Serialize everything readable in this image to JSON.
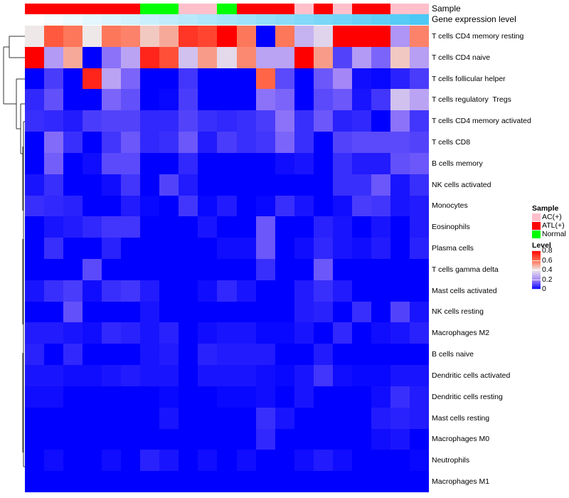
{
  "annotation_labels": {
    "sample": "Sample",
    "gene": "Gene expression level"
  },
  "legend": {
    "sample_title": "Sample",
    "sample_items": [
      {
        "label": "AC(+)",
        "color": "#ffc0cb"
      },
      {
        "label": "ATL(+)",
        "color": "#ff0000"
      },
      {
        "label": "Normal",
        "color": "#00ff00"
      }
    ],
    "level_title": "Level",
    "level_ticks": [
      "0.8",
      "0.6",
      "0.4",
      "0.2",
      "0"
    ]
  },
  "chart_data": {
    "type": "heatmap",
    "title": "",
    "value_range": [
      0,
      0.8
    ],
    "colorscale": [
      [
        0,
        "#0000ff"
      ],
      [
        0.2,
        "#a486f7"
      ],
      [
        0.4,
        "#eee8e8"
      ],
      [
        0.6,
        "#ff6a4a"
      ],
      [
        0.8,
        "#ff0000"
      ]
    ],
    "column_sample": [
      "ATL(+)",
      "ATL(+)",
      "ATL(+)",
      "ATL(+)",
      "ATL(+)",
      "ATL(+)",
      "Normal",
      "Normal",
      "AC(+)",
      "AC(+)",
      "Normal",
      "ATL(+)",
      "ATL(+)",
      "ATL(+)",
      "AC(+)",
      "ATL(+)",
      "AC(+)",
      "ATL(+)",
      "ATL(+)",
      "AC(+)",
      "AC(+)"
    ],
    "column_gene_expression_level": [
      0,
      0.05,
      0.1,
      0.15,
      0.2,
      0.25,
      0.3,
      0.35,
      0.4,
      0.45,
      0.5,
      0.55,
      0.6,
      0.65,
      0.7,
      0.75,
      0.8,
      0.85,
      0.9,
      0.95,
      1
    ],
    "rows": [
      "T cells CD4 memory resting",
      "T cells CD4 naive",
      "T cells follicular helper",
      "T cells regulatory  Tregs",
      "T cells CD4 memory activated",
      "T cells CD8",
      "B cells memory",
      "NK cells activated",
      "Monocytes",
      "Eosinophils",
      "Plasma cells",
      "T cells gamma delta",
      "Mast cells activated",
      "NK cells resting",
      "Macrophages M2",
      "B cells naive",
      "Dendritic cells activated",
      "Dendritic cells resting",
      "Mast cells resting",
      "Macrophages M0",
      "Neutrophils",
      "Macrophages M1"
    ],
    "values": [
      [
        0.4,
        0.63,
        0.58,
        0.4,
        0.58,
        0.56,
        0.45,
        0.5,
        0.7,
        0.67,
        0.8,
        0.58,
        0,
        0.58,
        0.29,
        0.36,
        0.8,
        0.8,
        0.8,
        0.23,
        0.56
      ],
      [
        0.8,
        0.24,
        0.5,
        0,
        0.17,
        0.26,
        0.73,
        0.65,
        0.32,
        0.52,
        0.37,
        0.55,
        0.26,
        0.26,
        0.8,
        0.52,
        0.1,
        0.24,
        0.15,
        0.45,
        0.25
      ],
      [
        0,
        0.09,
        0,
        0.73,
        0.26,
        0.15,
        0,
        0,
        0.08,
        0,
        0,
        0,
        0.61,
        0.11,
        0,
        0.13,
        0.2,
        0.02,
        0.01,
        0.05,
        0.09
      ],
      [
        0.06,
        0.12,
        0,
        0,
        0.15,
        0.12,
        0,
        0.01,
        0.09,
        0,
        0,
        0,
        0.17,
        0.15,
        0,
        0.11,
        0.13,
        0.03,
        0.08,
        0.32,
        0.26
      ],
      [
        0.07,
        0.06,
        0.04,
        0.09,
        0.1,
        0.1,
        0.06,
        0.06,
        0.1,
        0.07,
        0.06,
        0.07,
        0.09,
        0.17,
        0.07,
        0.13,
        0.05,
        0.06,
        0,
        0.17,
        0.08
      ],
      [
        0,
        0.16,
        0.07,
        0,
        0.08,
        0.13,
        0.06,
        0.07,
        0.13,
        0.04,
        0.09,
        0.07,
        0.08,
        0.15,
        0.07,
        0,
        0.1,
        0.11,
        0.11,
        0.11,
        0.1
      ],
      [
        0,
        0.14,
        0,
        0.02,
        0.11,
        0.11,
        0,
        0,
        0.06,
        0,
        0,
        0,
        0,
        0.02,
        0.03,
        0,
        0.07,
        0.04,
        0.04,
        0.12,
        0.13
      ],
      [
        0.03,
        0.07,
        0,
        0,
        0.02,
        0.08,
        0,
        0.1,
        0.04,
        0,
        0,
        0,
        0,
        0,
        0,
        0,
        0.07,
        0.07,
        0.13,
        0.03,
        0.07
      ],
      [
        0.07,
        0.06,
        0.05,
        0,
        0,
        0.04,
        0.01,
        0,
        0.08,
        0.01,
        0.04,
        0,
        0.01,
        0.07,
        0.03,
        0,
        0.02,
        0.09,
        0.08,
        0.03,
        0.04
      ],
      [
        0,
        0.03,
        0.04,
        0.06,
        0.08,
        0.08,
        0,
        0,
        0,
        0.03,
        0,
        0,
        0.13,
        0,
        0,
        0.05,
        0.03,
        0,
        0.03,
        0,
        0.04
      ],
      [
        0,
        0.07,
        0,
        0,
        0.05,
        0,
        0,
        0,
        0,
        0,
        0.02,
        0.02,
        0.13,
        0,
        0.02,
        0.06,
        0.03,
        0.02,
        0.04,
        0,
        0.05
      ],
      [
        0,
        0,
        0,
        0.11,
        0,
        0,
        0,
        0,
        0,
        0,
        0,
        0,
        0.07,
        0,
        0,
        0.13,
        0,
        0,
        0,
        0,
        0
      ],
      [
        0.03,
        0.07,
        0.09,
        0.02,
        0.07,
        0.08,
        0.04,
        0,
        0,
        0.02,
        0.06,
        0.03,
        0,
        0,
        0.04,
        0.07,
        0.04,
        0,
        0,
        0,
        0
      ],
      [
        0,
        0,
        0.12,
        0,
        0,
        0,
        0.03,
        0,
        0,
        0,
        0,
        0,
        0,
        0,
        0.04,
        0.05,
        0,
        0.07,
        0,
        0.1,
        0.03
      ],
      [
        0.04,
        0.04,
        0.03,
        0.02,
        0.06,
        0.05,
        0.03,
        0.05,
        0,
        0.02,
        0.03,
        0.03,
        0.01,
        0.01,
        0.03,
        0,
        0.06,
        0,
        0.02,
        0.03,
        0.05
      ],
      [
        0.05,
        0,
        0.06,
        0,
        0,
        0,
        0.03,
        0.04,
        0,
        0.05,
        0.04,
        0.04,
        0.04,
        0,
        0,
        0.04,
        0,
        0,
        0,
        0,
        0
      ],
      [
        0.03,
        0.03,
        0.02,
        0.02,
        0.03,
        0.04,
        0.03,
        0.03,
        0,
        0.03,
        0.03,
        0.03,
        0.02,
        0.01,
        0.03,
        0.08,
        0.02,
        0.01,
        0.01,
        0.03,
        0.03
      ],
      [
        0.02,
        0.02,
        0,
        0,
        0,
        0,
        0,
        0.01,
        0,
        0,
        0.01,
        0.01,
        0.02,
        0,
        0.03,
        0,
        0,
        0,
        0.02,
        0.07,
        0.04
      ],
      [
        0,
        0,
        0,
        0,
        0,
        0,
        0,
        0.03,
        0,
        0,
        0,
        0,
        0.07,
        0.03,
        0,
        0,
        0,
        0,
        0.04,
        0.05,
        0.04
      ],
      [
        0,
        0,
        0,
        0,
        0,
        0,
        0,
        0,
        0,
        0,
        0,
        0,
        0.06,
        0,
        0,
        0,
        0,
        0,
        0.02,
        0.03,
        0
      ],
      [
        0,
        0.02,
        0,
        0,
        0.02,
        0,
        0.05,
        0.03,
        0,
        0.02,
        0,
        0.02,
        0,
        0,
        0.02,
        0.04,
        0.02,
        0,
        0,
        0,
        0.01
      ],
      [
        0,
        0,
        0,
        0,
        0,
        0,
        0,
        0,
        0,
        0,
        0,
        0,
        0,
        0,
        0,
        0,
        0,
        0,
        0,
        0,
        0
      ]
    ]
  }
}
